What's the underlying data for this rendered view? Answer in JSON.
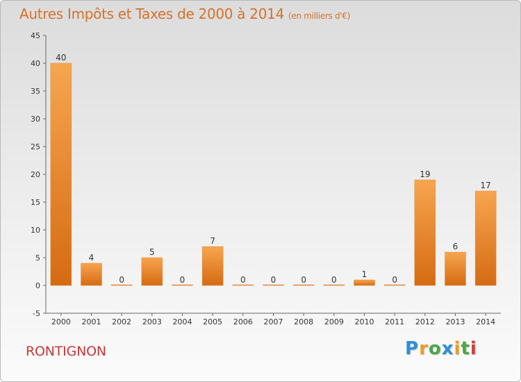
{
  "header": {
    "title": "Autres Impôts et Taxes de 2000 à 2014",
    "unit": "(en milliers d'€)"
  },
  "footer": {
    "place": "RONTIGNON",
    "brand": "Proxiti",
    "brand_letters": [
      {
        "ch": "P",
        "color": "#2f8fd6"
      },
      {
        "ch": "r",
        "color": "#e8a020"
      },
      {
        "ch": "o",
        "color": "#4aa84a"
      },
      {
        "ch": "x",
        "color": "#2f8fd6"
      },
      {
        "ch": "i",
        "color": "#e8a020"
      },
      {
        "ch": "t",
        "color": "#4aa84a"
      },
      {
        "ch": "i",
        "color": "#d04040"
      }
    ]
  },
  "colors": {
    "title": "#d4722a",
    "place": "#c23a3a",
    "bar_light": "#f7a54f",
    "bar_dark": "#d56b12"
  },
  "chart_data": {
    "type": "bar",
    "title": "Autres Impôts et Taxes de 2000 à 2014",
    "ylabel": "",
    "xlabel": "",
    "categories": [
      "2000",
      "2001",
      "2002",
      "2003",
      "2004",
      "2005",
      "2006",
      "2007",
      "2008",
      "2009",
      "2010",
      "2011",
      "2012",
      "2013",
      "2014"
    ],
    "values": [
      40,
      4,
      0,
      5,
      0,
      7,
      0,
      0,
      0,
      0,
      1,
      0,
      19,
      6,
      17
    ],
    "ylim": [
      -5,
      45
    ],
    "yticks": [
      -5,
      0,
      5,
      10,
      15,
      20,
      25,
      30,
      35,
      40,
      45
    ],
    "grid": false
  }
}
